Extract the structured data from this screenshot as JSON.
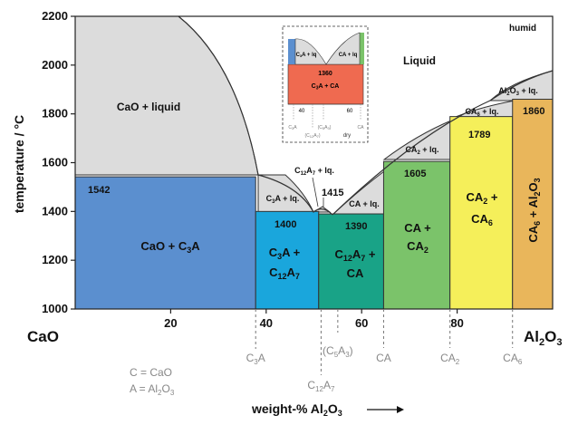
{
  "chart_data": {
    "type": "area",
    "xlabel": "weight-% Al",
    "xlabel_sub": "2",
    "xlabel_tail": "O",
    "xlabel_sub2": "3",
    "ylabel": "temperature / °C",
    "xlim": [
      0,
      100
    ],
    "ylim": [
      1000,
      2200
    ],
    "x_ticks": [
      20,
      40,
      60,
      80
    ],
    "y_ticks": [
      1000,
      1200,
      1400,
      1600,
      1800,
      2000,
      2200
    ],
    "left_end_label": "CaO",
    "right_end_label": [
      "Al",
      "2",
      "O",
      "3"
    ],
    "corner_note": "humid",
    "liquid_label": "Liquid",
    "legend_notes": [
      [
        "C = CaO"
      ],
      [
        "A = Al",
        "2",
        "O",
        "3"
      ]
    ],
    "fields": [
      {
        "name": "CaO + liquid",
        "color": "#dcdcdc"
      },
      {
        "name": "C3A + lq.",
        "color": "#dcdcdc"
      },
      {
        "name": "C12A7 + lq.",
        "color": "#dcdcdc"
      },
      {
        "name": "CA + lq.",
        "color": "#dcdcdc"
      },
      {
        "name": "CA2 + lq.",
        "color": "#dcdcdc"
      },
      {
        "name": "CA6 + lq.",
        "color": "#dcdcdc"
      },
      {
        "name": "Al2O3 + lq.",
        "color": "#dcdcdc"
      },
      {
        "name": "CaO + C3A",
        "x": [
          0,
          37.8
        ],
        "ylim": [
          1000,
          1542
        ],
        "color": "#5b8fcf"
      },
      {
        "name": "C3A + C12A7",
        "x": [
          37.8,
          51
        ],
        "ylim": [
          1000,
          1400
        ],
        "color": "#1aa6dc"
      },
      {
        "name": "C12A7 + CA",
        "x": [
          51,
          64.6
        ],
        "ylim": [
          1000,
          1390
        ],
        "color": "#19a387"
      },
      {
        "name": "CA + CA2",
        "x": [
          64.6,
          78.5
        ],
        "ylim": [
          1000,
          1605
        ],
        "color": "#7bc36a"
      },
      {
        "name": "CA2 + CA6",
        "x": [
          78.5,
          91.6
        ],
        "ylim": [
          1000,
          1789
        ],
        "color": "#f5ef5a"
      },
      {
        "name": "CA6 + Al2O3",
        "x": [
          91.6,
          100
        ],
        "ylim": [
          1000,
          1860
        ],
        "color": "#e9b65b"
      }
    ],
    "temperature_labels": [
      1542,
      1400,
      1415,
      1390,
      1605,
      1789,
      1860
    ],
    "compound_ticks": [
      {
        "name": "C3A",
        "x": 37.8
      },
      {
        "name": "C12A7",
        "x": 51.5
      },
      {
        "name": "(C5A3)",
        "x": 55.0
      },
      {
        "name": "CA",
        "x": 64.6
      },
      {
        "name": "CA2",
        "x": 78.5
      },
      {
        "name": "CA6",
        "x": 91.6
      }
    ],
    "inset": {
      "temperature_label": "1360",
      "field_label": [
        "C",
        "3",
        "A + CA"
      ],
      "liquid_fields": [
        [
          "C",
          "3",
          "A + lq"
        ],
        [
          "CA + lq"
        ]
      ],
      "x_ticks": [
        40,
        60
      ],
      "compounds": [
        [
          "C",
          "3",
          "A"
        ],
        [
          "(C",
          "5",
          "A",
          "3",
          ")"
        ],
        [
          "CA"
        ],
        [
          "(C",
          "12",
          "A",
          "7",
          ")"
        ]
      ],
      "note": "dry"
    }
  }
}
